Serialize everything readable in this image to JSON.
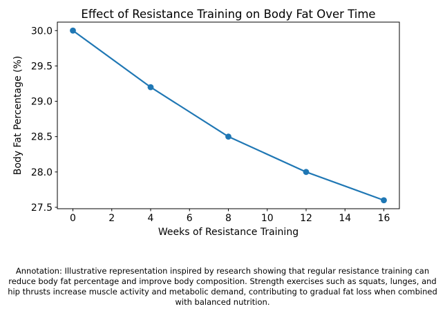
{
  "figure": {
    "annotation": "Annotation: Illustrative representation inspired by research showing that regular resistance training can reduce body fat percentage and improve body composition. Strength exercises such as squats, lunges, and hip thrusts increase muscle activity and metabolic demand, contributing to gradual fat loss when combined with balanced nutrition."
  },
  "chart_data": {
    "type": "line",
    "title": "Effect of Resistance Training on Body Fat Over Time",
    "xlabel": "Weeks of Resistance Training",
    "ylabel": "Body Fat Percentage (%)",
    "x": [
      0,
      4,
      8,
      12,
      16
    ],
    "series": [
      {
        "name": "Body Fat Percentage",
        "values": [
          30.0,
          29.2,
          28.5,
          28.0,
          27.6
        ],
        "color": "#1f77b4",
        "marker": "circle"
      }
    ],
    "xlim": [
      -0.8,
      16.8
    ],
    "ylim": [
      27.48,
      30.12
    ],
    "xticks": {
      "values": [
        0,
        2,
        4,
        6,
        8,
        10,
        12,
        14,
        16
      ],
      "labels": [
        "0",
        "2",
        "4",
        "6",
        "8",
        "10",
        "12",
        "14",
        "16"
      ]
    },
    "yticks": {
      "values": [
        27.5,
        28.0,
        28.5,
        29.0,
        29.5,
        30.0
      ],
      "labels": [
        "27.5",
        "28.0",
        "28.5",
        "29.0",
        "29.5",
        "30.0"
      ]
    },
    "grid": false,
    "legend": null,
    "axis_color": "#000000"
  }
}
